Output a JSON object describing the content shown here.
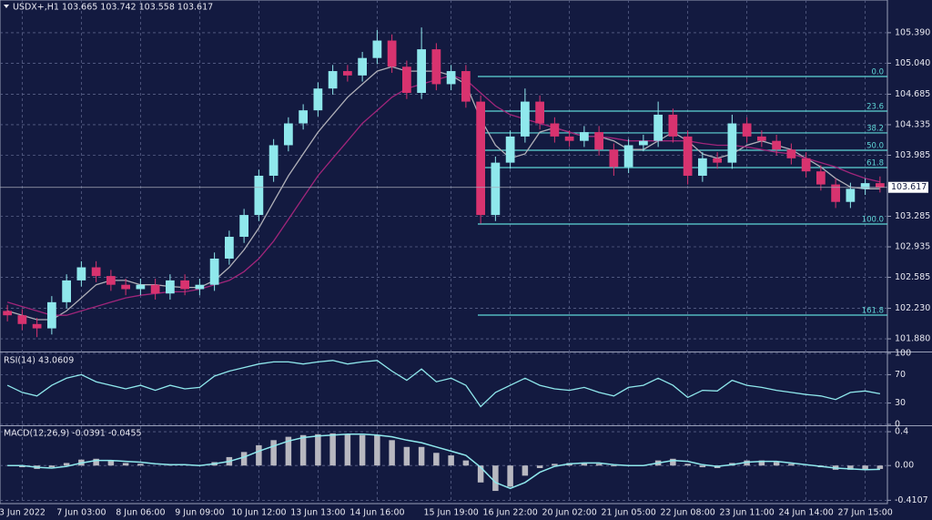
{
  "chart_data": [
    {
      "type": "candlestick",
      "title": "USDX+,H1  103.665 103.742 103.558 103.617",
      "categories": [
        null,
        "3 Jun 2022",
        null,
        null,
        null,
        "7 Jun 03:00",
        null,
        null,
        null,
        "8 Jun 06:00",
        null,
        null,
        null,
        "9 Jun 09:00",
        null,
        null,
        null,
        "10 Jun 12:00",
        null,
        null,
        null,
        "13 Jun 13:00",
        null,
        null,
        null,
        "14 Jun 16:00",
        null,
        null,
        null,
        null,
        "15 Jun 19:00",
        null,
        null,
        null,
        "16 Jun 22:00",
        null,
        null,
        null,
        "20 Jun 02:00",
        null,
        null,
        null,
        "21 Jun 05:00",
        null,
        null,
        null,
        "22 Jun 08:00",
        null,
        null,
        null,
        "23 Jun 11:00",
        null,
        null,
        null,
        "24 Jun 14:00",
        null,
        null,
        null,
        "27 Jun 15:00",
        null
      ],
      "open": [
        102.2,
        102.15,
        102.05,
        102.0,
        102.3,
        102.55,
        102.7,
        102.6,
        102.5,
        102.45,
        102.5,
        102.4,
        102.55,
        102.45,
        102.5,
        102.8,
        103.05,
        103.3,
        103.75,
        104.1,
        104.35,
        104.5,
        104.75,
        104.95,
        104.9,
        105.1,
        105.3,
        105.0,
        104.7,
        105.2,
        104.8,
        104.95,
        104.6,
        103.3,
        103.9,
        104.2,
        104.6,
        104.35,
        104.2,
        104.15,
        104.25,
        104.05,
        103.85,
        104.1,
        104.15,
        104.45,
        104.2,
        103.75,
        103.95,
        103.9,
        104.35,
        104.2,
        104.15,
        104.05,
        103.95,
        103.8,
        103.65,
        103.45,
        103.6,
        103.665
      ],
      "high": [
        102.27,
        102.22,
        102.12,
        102.37,
        102.62,
        102.77,
        102.77,
        102.67,
        102.57,
        102.57,
        102.57,
        102.62,
        102.62,
        102.57,
        102.87,
        103.12,
        103.37,
        103.82,
        104.17,
        104.42,
        104.57,
        104.82,
        105.02,
        105.02,
        105.17,
        105.42,
        105.37,
        105.07,
        105.45,
        105.27,
        105.02,
        105.02,
        104.67,
        103.97,
        104.27,
        104.75,
        104.67,
        104.42,
        104.27,
        104.32,
        104.32,
        104.12,
        104.17,
        104.22,
        104.6,
        104.52,
        104.27,
        104.02,
        104.02,
        104.45,
        104.42,
        104.27,
        104.22,
        104.12,
        104.02,
        103.87,
        103.72,
        103.67,
        103.72,
        103.742
      ],
      "low": [
        102.08,
        101.98,
        101.9,
        101.93,
        102.23,
        102.48,
        102.53,
        102.43,
        102.38,
        102.38,
        102.33,
        102.33,
        102.38,
        102.38,
        102.43,
        102.73,
        102.98,
        103.23,
        103.68,
        104.03,
        104.28,
        104.43,
        104.68,
        104.83,
        104.83,
        105.03,
        104.93,
        104.63,
        104.63,
        104.73,
        104.73,
        104.53,
        103.2,
        103.23,
        103.83,
        104.13,
        104.28,
        104.13,
        104.08,
        104.08,
        103.98,
        103.75,
        103.78,
        104.03,
        104.08,
        104.13,
        103.65,
        103.68,
        103.83,
        103.83,
        104.13,
        104.08,
        103.98,
        103.88,
        103.73,
        103.58,
        103.38,
        103.38,
        103.53,
        103.558
      ],
      "close": [
        102.15,
        102.05,
        102.0,
        102.3,
        102.55,
        102.7,
        102.6,
        102.5,
        102.45,
        102.5,
        102.4,
        102.55,
        102.45,
        102.5,
        102.8,
        103.05,
        103.3,
        103.75,
        104.1,
        104.35,
        104.5,
        104.75,
        104.95,
        104.9,
        105.1,
        105.3,
        105.0,
        104.7,
        105.2,
        104.8,
        104.95,
        104.6,
        103.3,
        103.9,
        104.2,
        104.6,
        104.35,
        104.2,
        104.15,
        104.25,
        104.05,
        103.85,
        104.1,
        104.15,
        104.45,
        104.2,
        103.75,
        103.95,
        103.9,
        104.35,
        104.2,
        104.15,
        104.05,
        103.95,
        103.8,
        103.65,
        103.45,
        103.6,
        103.665,
        103.617
      ],
      "up_color": "#8fe8ec",
      "down_color": "#d8336f",
      "series": [
        {
          "color": "#b0b0b8",
          "values": [
            102.2,
            102.15,
            102.1,
            102.1,
            102.2,
            102.35,
            102.5,
            102.55,
            102.55,
            102.5,
            102.5,
            102.48,
            102.47,
            102.47,
            102.55,
            102.7,
            102.9,
            103.15,
            103.45,
            103.75,
            104.0,
            104.25,
            104.45,
            104.65,
            104.8,
            104.95,
            105.0,
            104.95,
            104.95,
            104.95,
            104.9,
            104.8,
            104.4,
            104.1,
            103.95,
            104.0,
            104.25,
            104.3,
            104.25,
            104.2,
            104.2,
            104.15,
            104.05,
            104.05,
            104.15,
            104.25,
            104.15,
            104.0,
            103.95,
            104.0,
            104.1,
            104.15,
            104.1,
            104.05,
            103.95,
            103.85,
            103.72,
            103.62,
            103.6,
            103.6
          ]
        },
        {
          "color": "#a0257a",
          "values": [
            102.3,
            102.25,
            102.2,
            102.15,
            102.15,
            102.2,
            102.25,
            102.3,
            102.35,
            102.38,
            102.4,
            102.42,
            102.42,
            102.45,
            102.5,
            102.55,
            102.65,
            102.8,
            103.0,
            103.25,
            103.5,
            103.75,
            103.95,
            104.15,
            104.35,
            104.5,
            104.65,
            104.75,
            104.8,
            104.85,
            104.9,
            104.85,
            104.7,
            104.55,
            104.45,
            104.4,
            104.35,
            104.3,
            104.25,
            104.2,
            104.2,
            104.18,
            104.15,
            104.15,
            104.15,
            104.15,
            104.15,
            104.12,
            104.1,
            104.1,
            104.08,
            104.05,
            104.02,
            104.0,
            103.95,
            103.9,
            103.85,
            103.78,
            103.72,
            103.68
          ]
        }
      ],
      "fibo": [
        {
          "value": 104.888,
          "label": "0.0"
        },
        {
          "value": 104.491,
          "label": "23.6"
        },
        {
          "value": 104.241,
          "label": "38.2"
        },
        {
          "value": 104.042,
          "label": "50.0"
        },
        {
          "value": 103.844,
          "label": "61.8"
        },
        {
          "value": 103.196,
          "label": "100.0"
        },
        {
          "value": 102.152,
          "label": "161.8"
        }
      ],
      "fibo_color": "#5fd6d6",
      "last_price": 103.617,
      "ylim": [
        101.745,
        105.765
      ],
      "yticks": [
        {
          "value": 105.39,
          "label": "105.390"
        },
        {
          "value": 105.04,
          "label": "105.040"
        },
        104.685,
        104.335,
        103.985,
        103.285,
        102.935,
        102.585,
        {
          "value": 102.23,
          "label": "102.230"
        },
        {
          "value": 101.88,
          "label": "101.880"
        }
      ],
      "grid": true
    },
    {
      "type": "line",
      "title": "RSI(14) 43.0609",
      "series": [
        {
          "color": "#8fe8ec",
          "values": [
            55,
            45,
            40,
            55,
            65,
            70,
            60,
            55,
            50,
            55,
            48,
            55,
            50,
            52,
            68,
            75,
            80,
            85,
            88,
            88,
            85,
            88,
            90,
            85,
            88,
            90,
            75,
            62,
            78,
            60,
            65,
            55,
            25,
            45,
            55,
            65,
            55,
            50,
            48,
            52,
            45,
            40,
            52,
            55,
            65,
            55,
            38,
            48,
            47,
            62,
            55,
            52,
            48,
            45,
            42,
            40,
            35,
            45,
            47,
            43.06
          ]
        }
      ],
      "ylim": [
        0,
        100
      ],
      "yticks": [
        100,
        70,
        30,
        0
      ],
      "grid": true
    },
    {
      "type": "macd",
      "title": "MACD(12,26,9) -0.0391 -0.0455",
      "values": [
        0.0,
        -0.02,
        -0.04,
        -0.02,
        0.03,
        0.07,
        0.08,
        0.06,
        0.03,
        0.02,
        0.0,
        0.01,
        0.0,
        0.0,
        0.04,
        0.1,
        0.16,
        0.24,
        0.3,
        0.34,
        0.36,
        0.37,
        0.38,
        0.37,
        0.36,
        0.36,
        0.3,
        0.22,
        0.22,
        0.15,
        0.12,
        0.06,
        -0.2,
        -0.3,
        -0.25,
        -0.12,
        -0.03,
        0.02,
        0.03,
        0.03,
        0.02,
        -0.01,
        0.0,
        0.0,
        0.06,
        0.08,
        0.02,
        -0.02,
        -0.03,
        0.03,
        0.06,
        0.06,
        0.04,
        0.02,
        0.0,
        -0.02,
        -0.05,
        -0.05,
        -0.05,
        -0.04
      ],
      "color": "#b8b8c0",
      "series": [
        {
          "color": "#8fe8ec",
          "values": [
            0.0,
            0.0,
            -0.02,
            -0.03,
            -0.01,
            0.03,
            0.06,
            0.06,
            0.05,
            0.04,
            0.02,
            0.01,
            0.01,
            0.0,
            0.02,
            0.05,
            0.1,
            0.17,
            0.23,
            0.29,
            0.33,
            0.35,
            0.36,
            0.37,
            0.37,
            0.36,
            0.34,
            0.3,
            0.27,
            0.22,
            0.17,
            0.12,
            -0.02,
            -0.2,
            -0.27,
            -0.2,
            -0.08,
            -0.01,
            0.02,
            0.03,
            0.03,
            0.01,
            0.0,
            0.0,
            0.03,
            0.06,
            0.05,
            0.01,
            -0.01,
            0.01,
            0.04,
            0.05,
            0.05,
            0.03,
            0.01,
            -0.01,
            -0.03,
            -0.04,
            -0.05,
            -0.045
          ]
        }
      ],
      "ylim": [
        -0.45,
        0.465
      ],
      "yticks": [
        0.4,
        {
          "value": 0,
          "label": "0.00"
        },
        -0.4107
      ],
      "grid": true
    }
  ]
}
